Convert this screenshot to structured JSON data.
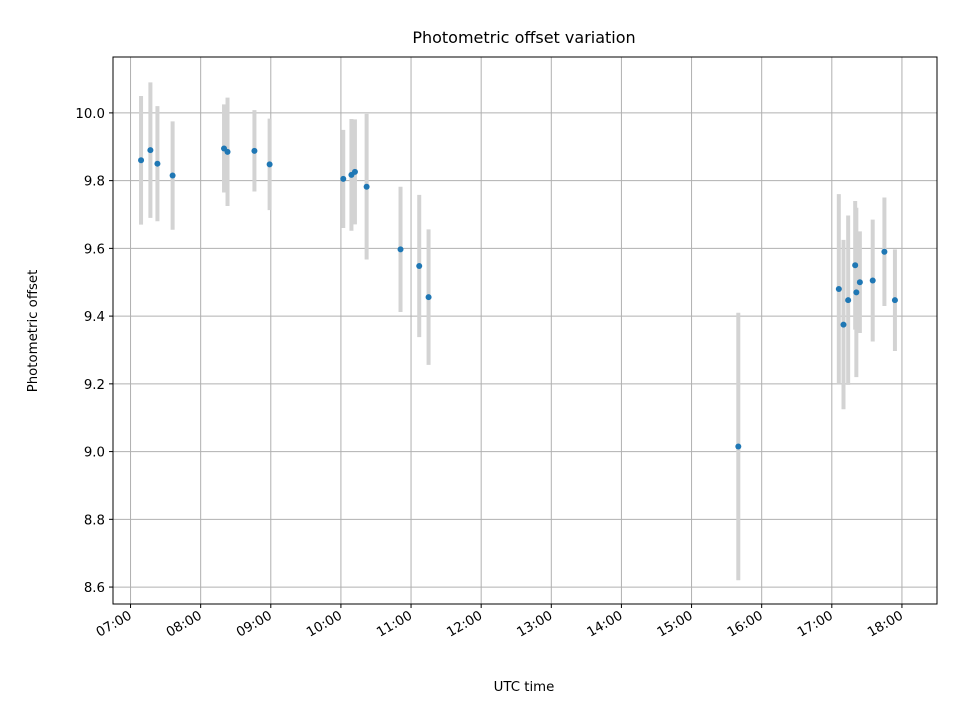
{
  "chart_data": {
    "type": "scatter",
    "title": "Photometric offset variation",
    "xlabel": "UTC time",
    "ylabel": "Photometric offset",
    "xlim": [
      "06:45",
      "18:30"
    ],
    "ylim": [
      8.55,
      10.165
    ],
    "grid": true,
    "colors": {
      "point": "#1f77b4",
      "errorbar": "#d3d3d3",
      "grid": "#b0b0b0"
    },
    "x_ticks": [
      "07:00",
      "08:00",
      "09:00",
      "10:00",
      "11:00",
      "12:00",
      "13:00",
      "14:00",
      "15:00",
      "16:00",
      "17:00",
      "18:00"
    ],
    "y_ticks": [
      "8.6",
      "8.8",
      "9.0",
      "9.2",
      "9.4",
      "9.6",
      "9.8",
      "10.0"
    ],
    "series": [
      {
        "points": [
          {
            "x": "07:09",
            "y": 9.86,
            "err": 0.19
          },
          {
            "x": "07:17",
            "y": 9.89,
            "err": 0.2
          },
          {
            "x": "07:23",
            "y": 9.85,
            "err": 0.17
          },
          {
            "x": "07:36",
            "y": 9.815,
            "err": 0.16
          },
          {
            "x": "08:20",
            "y": 9.895,
            "err": 0.13
          },
          {
            "x": "08:23",
            "y": 9.885,
            "err": 0.16
          },
          {
            "x": "08:46",
            "y": 9.888,
            "err": 0.12
          },
          {
            "x": "08:59",
            "y": 9.848,
            "err": 0.135
          },
          {
            "x": "10:02",
            "y": 9.805,
            "err": 0.145
          },
          {
            "x": "10:09",
            "y": 9.817,
            "err": 0.165
          },
          {
            "x": "10:12",
            "y": 9.826,
            "err": 0.155
          },
          {
            "x": "10:22",
            "y": 9.782,
            "err": 0.215
          },
          {
            "x": "10:51",
            "y": 9.597,
            "err": 0.185
          },
          {
            "x": "11:07",
            "y": 9.548,
            "err": 0.21
          },
          {
            "x": "11:15",
            "y": 9.456,
            "err": 0.2
          },
          {
            "x": "15:40",
            "y": 9.015,
            "err": 0.395
          },
          {
            "x": "17:06",
            "y": 9.48,
            "err": 0.28
          },
          {
            "x": "17:10",
            "y": 9.375,
            "err": 0.25
          },
          {
            "x": "17:14",
            "y": 9.447,
            "err": 0.25
          },
          {
            "x": "17:20",
            "y": 9.55,
            "err": 0.19
          },
          {
            "x": "17:21",
            "y": 9.47,
            "err": 0.25
          },
          {
            "x": "17:24",
            "y": 9.5,
            "err": 0.15
          },
          {
            "x": "17:35",
            "y": 9.505,
            "err": 0.18
          },
          {
            "x": "17:45",
            "y": 9.59,
            "err": 0.16
          },
          {
            "x": "17:54",
            "y": 9.447,
            "err": 0.15
          }
        ]
      }
    ]
  }
}
